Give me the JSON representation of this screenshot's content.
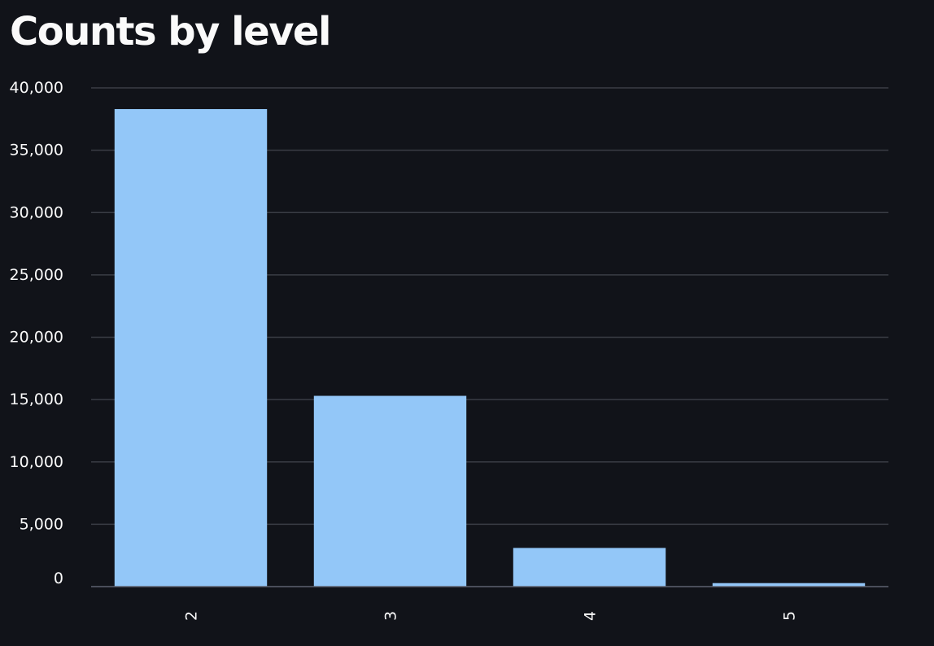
{
  "page": {
    "title": "Counts by level"
  },
  "colors": {
    "background": "#111319",
    "bar": "#93c7f8",
    "grid": "#3a3d45",
    "axis": "#5e6270",
    "text": "#fafafa"
  },
  "chart_data": {
    "type": "bar",
    "title": "Counts by level",
    "xlabel": "",
    "ylabel": "",
    "categories": [
      "2",
      "3",
      "4",
      "5"
    ],
    "values": [
      38300,
      15300,
      3100,
      280
    ],
    "ylim": [
      0,
      40000
    ],
    "yticks": [
      0,
      5000,
      10000,
      15000,
      20000,
      25000,
      30000,
      35000,
      40000
    ],
    "ytick_labels": [
      "0",
      "5,000",
      "10,000",
      "15,000",
      "20,000",
      "25,000",
      "30,000",
      "35,000",
      "40,000"
    ],
    "grid": true,
    "legend": false,
    "bar_color": "#93c7f8"
  }
}
